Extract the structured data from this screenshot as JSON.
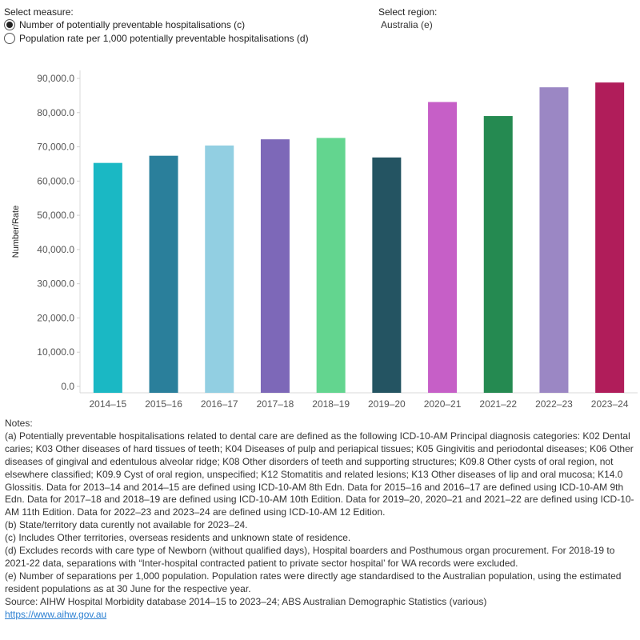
{
  "controls": {
    "measure_title": "Select measure:",
    "measure_options": [
      {
        "label": "Number of potentially preventable hospitalisations (c)",
        "selected": true
      },
      {
        "label": "Population rate per 1,000 potentially preventable hospitalisations (d)",
        "selected": false
      }
    ],
    "region_title": "Select region:",
    "region_value": "Australia (e)"
  },
  "chart_data": {
    "type": "bar",
    "categories": [
      "2014–15",
      "2015–16",
      "2016–17",
      "2017–18",
      "2018–19",
      "2019–20",
      "2020–21",
      "2021–22",
      "2022–23",
      "2023–24"
    ],
    "values": [
      65300,
      67400,
      70400,
      72200,
      72600,
      66900,
      83100,
      79000,
      87400,
      88800
    ],
    "colors": [
      "#1ab8c4",
      "#2a7f9b",
      "#92cfe2",
      "#7d68b8",
      "#63d58f",
      "#245462",
      "#c65fc7",
      "#258a51",
      "#9b87c4",
      "#b01d5a"
    ],
    "ylabel": "Number/Rate",
    "ylim": [
      0,
      90000
    ],
    "yticks": [
      "0.0",
      "10,000.0",
      "20,000.0",
      "30,000.0",
      "40,000.0",
      "50,000.0",
      "60,000.0",
      "70,000.0",
      "80,000.0",
      "90,000.0"
    ],
    "grid": false
  },
  "notes": {
    "heading": "Notes:",
    "a": "(a) Potentially preventable hospitalisations related to dental care are defined as the following ICD-10-AM Principal diagnosis categories: K02 Dental caries; K03 Other diseases of hard tissues of teeth; K04 Diseases of pulp and periapical tissues; K05 Gingivitis and periodontal diseases; K06 Other diseases of gingival and edentulous alveolar ridge; K08 Other disorders of teeth and supporting structures; K09.8 Other cysts of oral region, not elsewhere classified; K09.9 Cyst of oral region, unspecified; K12 Stomatitis and related lesions; K13 Other diseases of lip and oral mucosa; K14.0 Glossitis. Data for 2013–14 and 2014–15 are defined using ICD-10-AM 8th Edn. Data for 2015–16 and 2016–17 are defined using ICD-10-AM 9th Edn. Data for 2017–18 and 2018–19 are defined using ICD-10-AM 10th Edition. Data for 2019–20, 2020–21 and 2021–22 are defined using ICD-10-AM 11th Edition. Data for 2022–23 and 2023–24 are defined using ICD-10-AM 12 Edition.",
    "b": "(b) State/territory data curently not available for 2023–24.",
    "c": "(c) Includes Other territories, overseas residents and unknown state of residence.",
    "d": "(d) Excludes records with care type of Newborn (without qualified days), Hospital boarders and Posthumous organ procurement. For 2018-19 to 2021-22 data, separations with “Inter-hospital contracted patient to private sector hospital’ for WA records were excluded.",
    "e": "(e) Number of separations per 1,000 population. Population rates were directly age standardised to the Australian population, using the estimated resident populations as at 30 June for the respective year.",
    "source": "Source: AIHW Hospital Morbidity database 2014–15 to 2023–24; ABS Australian Demographic Statistics (various)",
    "link": "https://www.aihw.gov.au"
  }
}
